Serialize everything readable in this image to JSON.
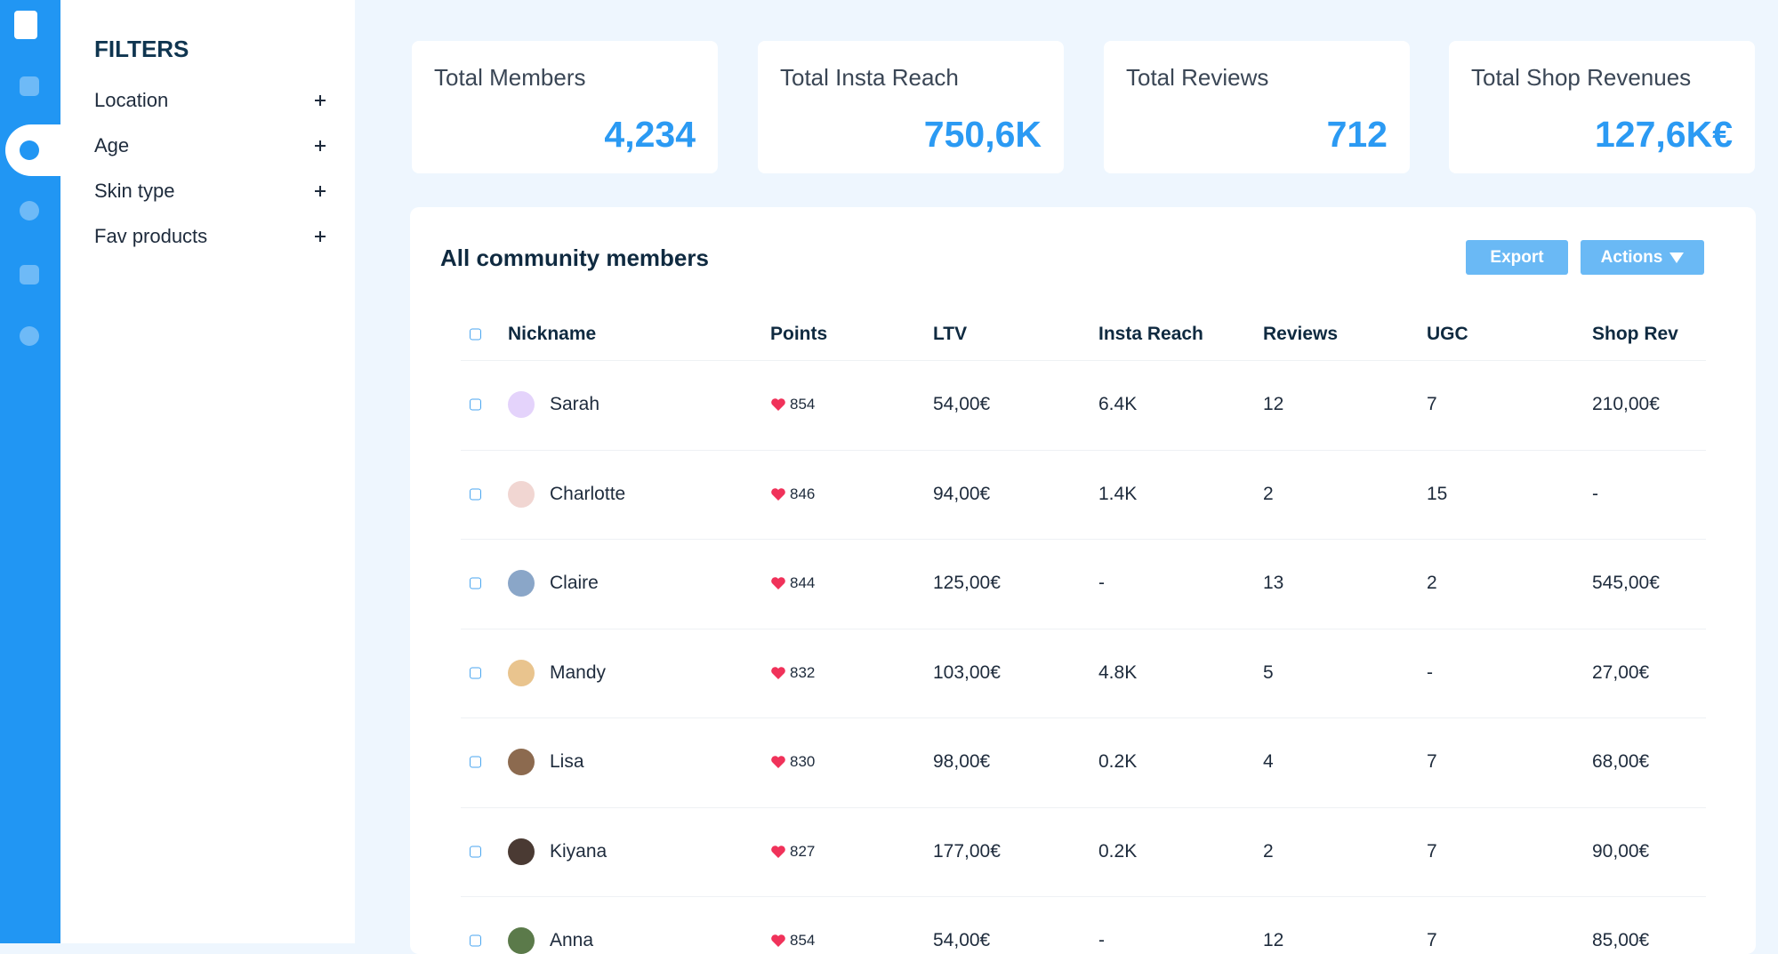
{
  "filters": {
    "title": "FILTERS",
    "items": [
      "Location",
      "Age",
      "Skin type",
      "Fav products"
    ]
  },
  "cards": [
    {
      "label": "Total Members",
      "value": "4,234"
    },
    {
      "label": "Total Insta Reach",
      "value": "750,6K"
    },
    {
      "label": "Total Reviews",
      "value": "712"
    },
    {
      "label": "Total Shop Revenues",
      "value": "127,6K€"
    }
  ],
  "table": {
    "title": "All community members",
    "buttons": [
      "Export",
      "Actions"
    ],
    "columns": [
      "Nickname",
      "Points",
      "LTV",
      "Insta Reach",
      "Reviews",
      "UGC",
      "Shop Rev"
    ],
    "rows": [
      [
        "Sarah",
        "854",
        "54,00€",
        "6.4K",
        "12",
        "7",
        "210,00€"
      ],
      [
        "Charlotte",
        "846",
        "94,00€",
        "1.4K",
        "2",
        "15",
        "-"
      ],
      [
        "Claire",
        "844",
        "125,00€",
        "-",
        "13",
        "2",
        "545,00€"
      ],
      [
        "Mandy",
        "832",
        "103,00€",
        "4.8K",
        "5",
        "-",
        "27,00€"
      ],
      [
        "Lisa",
        "830",
        "98,00€",
        "0.2K",
        "4",
        "7",
        "68,00€"
      ],
      [
        "Kiyana",
        "827",
        "177,00€",
        "0.2K",
        "2",
        "7",
        "90,00€"
      ],
      [
        "Anna",
        "854",
        "54,00€",
        "-",
        "12",
        "7",
        "85,00€"
      ]
    ]
  }
}
